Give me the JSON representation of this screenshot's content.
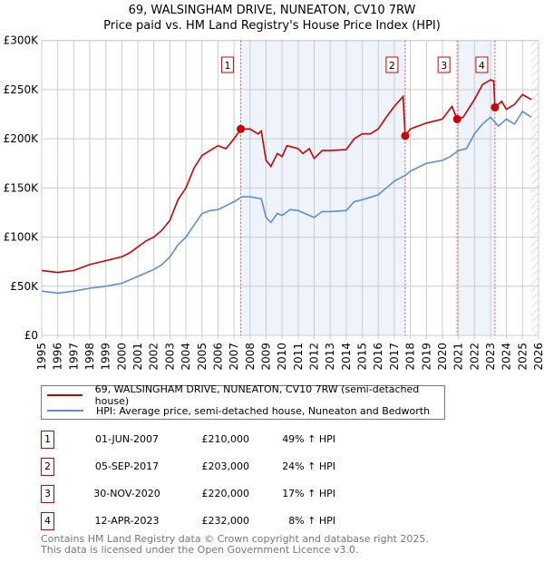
{
  "title": "69, WALSINGHAM DRIVE, NUNEATON, CV10 7RW",
  "subtitle": "Price paid vs. HM Land Registry's House Price Index (HPI)",
  "chart_data": {
    "type": "line",
    "title": "69, WALSINGHAM DRIVE, NUNEATON, CV10 7RW — Price paid vs. HM Land Registry's House Price Index (HPI)",
    "xlim": [
      1995,
      2026
    ],
    "ylim": [
      0,
      300000
    ],
    "x_ticks": [
      "1995",
      "1996",
      "1997",
      "1998",
      "1999",
      "2000",
      "2001",
      "2002",
      "2003",
      "2004",
      "2005",
      "2006",
      "2007",
      "2008",
      "2009",
      "2010",
      "2011",
      "2012",
      "2013",
      "2014",
      "2015",
      "2016",
      "2017",
      "2018",
      "2019",
      "2020",
      "2021",
      "2022",
      "2023",
      "2024",
      "2025",
      "2026"
    ],
    "y_ticks": [
      {
        "v": 0,
        "label": "£0"
      },
      {
        "v": 50000,
        "label": "£50K"
      },
      {
        "v": 100000,
        "label": "£100K"
      },
      {
        "v": 150000,
        "label": "£150K"
      },
      {
        "v": 200000,
        "label": "£200K"
      },
      {
        "v": 250000,
        "label": "£250K"
      },
      {
        "v": 300000,
        "label": "£300K"
      }
    ],
    "grid": true,
    "shaded_ranges": [
      [
        2007.42,
        2017.68
      ],
      [
        2020.92,
        2023.28
      ]
    ],
    "forecast_hatch_from": 2025.55,
    "series": [
      {
        "name": "69, WALSINGHAM DRIVE, NUNEATON, CV10 7RW (semi-detached house)",
        "color": "#cc0000",
        "points": [
          [
            1995,
            66
          ],
          [
            1996,
            64
          ],
          [
            1997,
            66
          ],
          [
            1998,
            72
          ],
          [
            1999,
            76
          ],
          [
            2000,
            80
          ],
          [
            2000.5,
            84
          ],
          [
            2001,
            90
          ],
          [
            2001.5,
            96
          ],
          [
            2002,
            100
          ],
          [
            2002.5,
            107
          ],
          [
            2003,
            117
          ],
          [
            2003.5,
            138
          ],
          [
            2004,
            150
          ],
          [
            2004.5,
            170
          ],
          [
            2005,
            183
          ],
          [
            2005.5,
            188
          ],
          [
            2006,
            193
          ],
          [
            2006.5,
            190
          ],
          [
            2007,
            200
          ],
          [
            2007.42,
            210
          ],
          [
            2008,
            210
          ],
          [
            2008.5,
            205
          ],
          [
            2008.7,
            208
          ],
          [
            2009,
            178
          ],
          [
            2009.3,
            172
          ],
          [
            2009.7,
            185
          ],
          [
            2010,
            182
          ],
          [
            2010.3,
            193
          ],
          [
            2011,
            190
          ],
          [
            2011.3,
            185
          ],
          [
            2011.7,
            190
          ],
          [
            2012,
            180
          ],
          [
            2012.5,
            188
          ],
          [
            2013,
            188
          ],
          [
            2014,
            189
          ],
          [
            2014.5,
            200
          ],
          [
            2015,
            205
          ],
          [
            2015.5,
            205
          ],
          [
            2016,
            210
          ],
          [
            2016.5,
            222
          ],
          [
            2017,
            233
          ],
          [
            2017.55,
            243
          ],
          [
            2017.68,
            203
          ],
          [
            2018,
            210
          ],
          [
            2019,
            216
          ],
          [
            2020,
            220
          ],
          [
            2020.6,
            233
          ],
          [
            2020.92,
            220
          ],
          [
            2021.3,
            222
          ],
          [
            2022,
            240
          ],
          [
            2022.5,
            255
          ],
          [
            2023,
            260
          ],
          [
            2023.2,
            259
          ],
          [
            2023.28,
            232
          ],
          [
            2023.7,
            238
          ],
          [
            2024,
            230
          ],
          [
            2024.5,
            235
          ],
          [
            2025,
            245
          ],
          [
            2025.55,
            240
          ]
        ]
      },
      {
        "name": "HPI: Average price, semi-detached house, Nuneaton and Bedworth",
        "color": "#5b8fd4",
        "points": [
          [
            1995,
            45
          ],
          [
            1996,
            43
          ],
          [
            1997,
            45
          ],
          [
            1998,
            48
          ],
          [
            1999,
            50
          ],
          [
            2000,
            53
          ],
          [
            2001,
            60
          ],
          [
            2002,
            67
          ],
          [
            2002.5,
            72
          ],
          [
            2003,
            80
          ],
          [
            2003.5,
            92
          ],
          [
            2004,
            100
          ],
          [
            2004.5,
            112
          ],
          [
            2005,
            124
          ],
          [
            2005.5,
            127
          ],
          [
            2006,
            128
          ],
          [
            2007,
            136
          ],
          [
            2007.5,
            141
          ],
          [
            2008,
            141
          ],
          [
            2008.7,
            139
          ],
          [
            2009,
            120
          ],
          [
            2009.3,
            115
          ],
          [
            2009.7,
            124
          ],
          [
            2010,
            122
          ],
          [
            2010.5,
            128
          ],
          [
            2011,
            127
          ],
          [
            2012,
            120
          ],
          [
            2012.5,
            126
          ],
          [
            2013,
            126
          ],
          [
            2014,
            127
          ],
          [
            2014.5,
            136
          ],
          [
            2015,
            138
          ],
          [
            2016,
            143
          ],
          [
            2016.5,
            150
          ],
          [
            2017,
            157
          ],
          [
            2017.7,
            163
          ],
          [
            2018,
            167
          ],
          [
            2019,
            175
          ],
          [
            2020,
            178
          ],
          [
            2020.5,
            182
          ],
          [
            2021,
            188
          ],
          [
            2021.5,
            190
          ],
          [
            2022,
            205
          ],
          [
            2022.5,
            215
          ],
          [
            2023,
            222
          ],
          [
            2023.5,
            213
          ],
          [
            2024,
            220
          ],
          [
            2024.5,
            215
          ],
          [
            2025,
            228
          ],
          [
            2025.55,
            222
          ]
        ]
      }
    ],
    "y_units": "thousands GBP in points",
    "sales": [
      {
        "id": "1",
        "x": 2007.42,
        "value": 210000
      },
      {
        "id": "2",
        "x": 2017.68,
        "value": 203000
      },
      {
        "id": "3",
        "x": 2020.92,
        "value": 220000
      },
      {
        "id": "4",
        "x": 2023.28,
        "value": 232000
      }
    ]
  },
  "legend": {
    "property": "69, WALSINGHAM DRIVE, NUNEATON, CV10 7RW (semi-detached house)",
    "hpi": "HPI: Average price, semi-detached house, Nuneaton and Bedworth"
  },
  "transactions": [
    {
      "id": "1",
      "date": "01-JUN-2007",
      "price": "£210,000",
      "hpi": "49% ↑ HPI"
    },
    {
      "id": "2",
      "date": "05-SEP-2017",
      "price": "£203,000",
      "hpi": "24% ↑ HPI"
    },
    {
      "id": "3",
      "date": "30-NOV-2020",
      "price": "£220,000",
      "hpi": "17% ↑ HPI"
    },
    {
      "id": "4",
      "date": "12-APR-2023",
      "price": "£232,000",
      "hpi": "8% ↑ HPI"
    }
  ],
  "footer": {
    "line1": "Contains HM Land Registry data © Crown copyright and database right 2025.",
    "line2": "This data is licensed under the Open Government Licence v3.0."
  }
}
